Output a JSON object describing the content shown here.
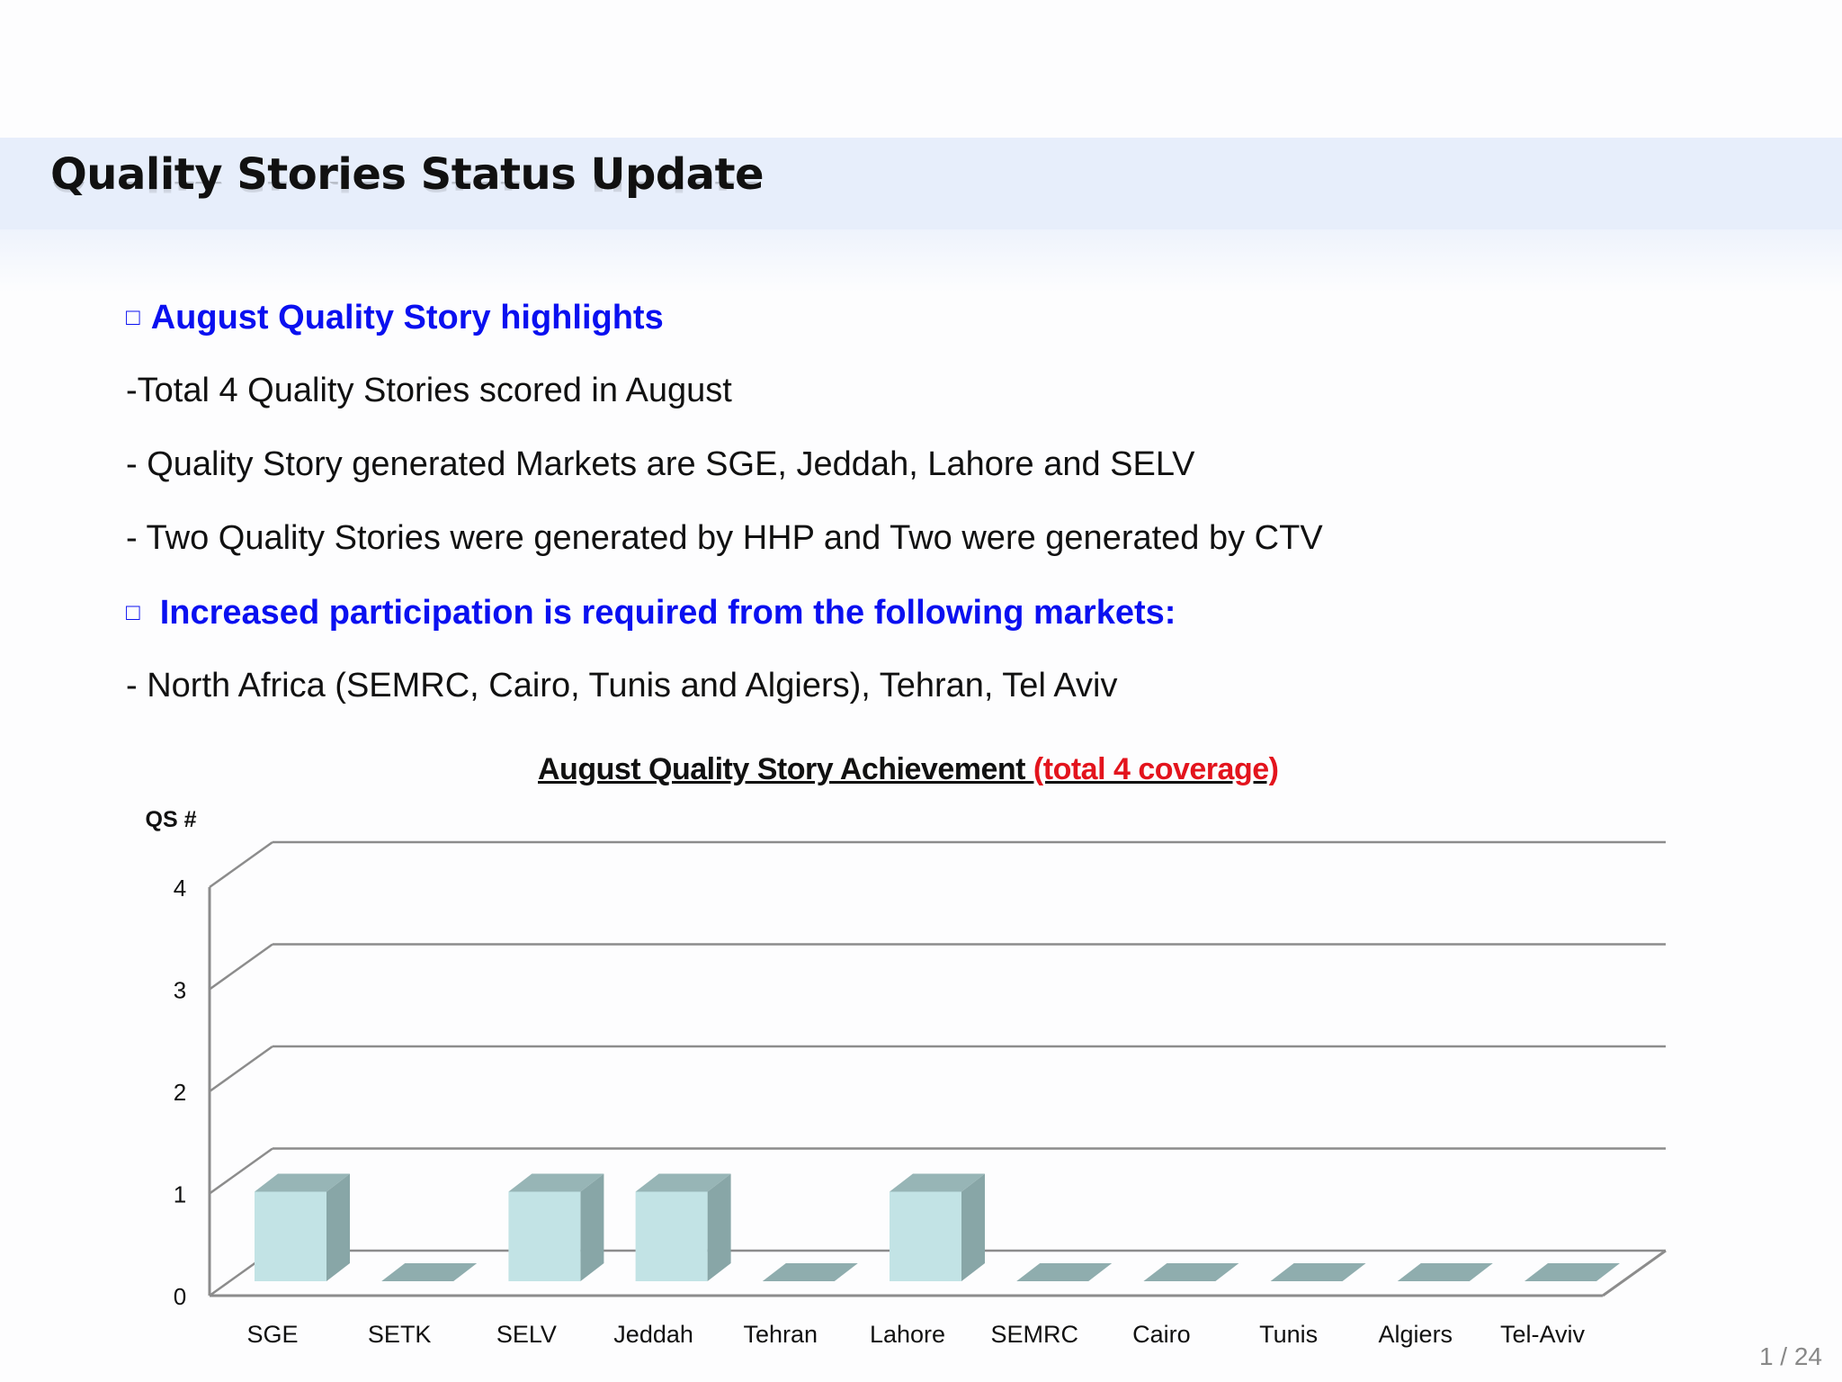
{
  "page": {
    "title": "Quality Stories Status Update",
    "page_number": "1 / 24"
  },
  "bullets": {
    "box_glyph": "□",
    "heading1": "August Quality Story highlights",
    "line1": "-Total 4 Quality Stories scored in August",
    "line2": "- Quality Story generated Markets are SGE, Jeddah, Lahore and SELV",
    "line3": "- Two Quality Stories were generated by HHP and Two were generated by CTV",
    "heading2": "Increased participation is required from the following markets:",
    "line4": "- North Africa (SEMRC, Cairo, Tunis and Algiers), Tehran, Tel Aviv"
  },
  "chart_data": {
    "type": "bar",
    "title": "August Quality Story Achievement ",
    "title_highlight": "(total 4 coverage)",
    "ylabel": "QS #",
    "xlabel": "",
    "categories": [
      "SGE",
      "SETK",
      "SELV",
      "Jeddah",
      "Tehran",
      "Lahore",
      "SEMRC",
      "Cairo",
      "Tunis",
      "Algiers",
      "Tel-Aviv"
    ],
    "values": [
      1,
      0,
      1,
      1,
      0,
      1,
      0,
      0,
      0,
      0,
      0
    ],
    "ylim": [
      0,
      4
    ],
    "yticks": [
      0,
      1,
      2,
      3,
      4
    ],
    "grid": true,
    "style": "3d-column",
    "colors": {
      "bar_front": "#c2e3e5",
      "bar_side": "#88a6a7",
      "bar_top": "#97b5b6",
      "zero_bar": "#8fadae",
      "grid": "#8c8c8c",
      "title_highlight": "#e3141d",
      "heading": "#0a10f0"
    }
  }
}
